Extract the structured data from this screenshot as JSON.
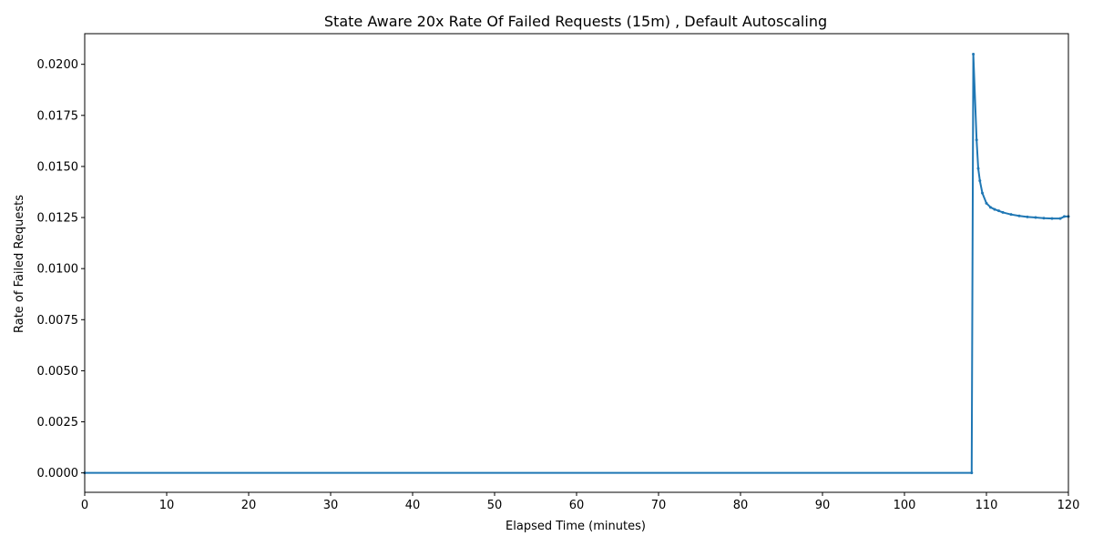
{
  "chart_data": {
    "type": "line",
    "title": "State Aware 20x Rate Of Failed Requests (15m) , Default Autoscaling",
    "xlabel": "Elapsed Time (minutes)",
    "ylabel": "Rate of Failed Requests",
    "xlim": [
      0,
      120
    ],
    "ylim": [
      -0.00095,
      0.0215
    ],
    "xticks": [
      0,
      10,
      20,
      30,
      40,
      50,
      60,
      70,
      80,
      90,
      100,
      110,
      120
    ],
    "xtick_labels": [
      "0",
      "10",
      "20",
      "30",
      "40",
      "50",
      "60",
      "70",
      "80",
      "90",
      "100",
      "110",
      "120"
    ],
    "yticks": [
      0.0,
      0.0025,
      0.005,
      0.0075,
      0.01,
      0.0125,
      0.015,
      0.0175,
      0.02
    ],
    "ytick_labels": [
      "0.0000",
      "0.0025",
      "0.0050",
      "0.0075",
      "0.0100",
      "0.0125",
      "0.0150",
      "0.0175",
      "0.0200"
    ],
    "grid": false,
    "line_color": "#1f77b4",
    "series": [
      {
        "x": [
          0,
          108.2,
          108.4,
          108.8,
          109.0,
          109.2,
          109.5,
          110.0,
          110.5,
          111.0,
          111.5,
          112.0,
          113.0,
          114.0,
          115.0,
          116.0,
          117.0,
          118.0,
          119.0,
          119.5,
          120.0
        ],
        "y": [
          0.0,
          0.0,
          0.0205,
          0.0163,
          0.0149,
          0.0143,
          0.0137,
          0.0132,
          0.013,
          0.0129,
          0.01283,
          0.01275,
          0.01265,
          0.01258,
          0.01253,
          0.0125,
          0.01247,
          0.01245,
          0.01245,
          0.01255,
          0.01255
        ]
      }
    ]
  }
}
